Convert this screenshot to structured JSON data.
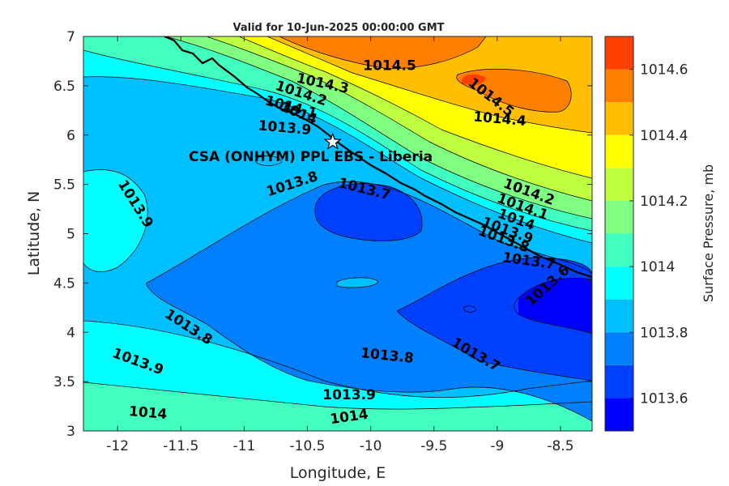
{
  "chart_data": {
    "type": "contour",
    "title": "Valid for 10-Jun-2025 00:00:00 GMT",
    "xlabel": "Longitude, E",
    "ylabel": "Latitude, N",
    "xlim": [
      -12.27,
      -8.25
    ],
    "ylim": [
      3,
      7
    ],
    "xticks": [
      -12,
      -11.5,
      -11,
      -10.5,
      -10,
      -9.5,
      -9,
      -8.5
    ],
    "yticks": [
      3,
      3.5,
      4,
      4.5,
      5,
      5.5,
      6,
      6.5,
      7
    ],
    "xtick_labels": [
      "-12",
      "-11.5",
      "-11",
      "-10.5",
      "-10",
      "-9.5",
      "-9",
      "-8.5"
    ],
    "ytick_labels": [
      "3",
      "3.5",
      "4",
      "4.5",
      "5",
      "5.5",
      "6",
      "6.5",
      "7"
    ],
    "colorbar": {
      "label": "Surface Pressure, mb",
      "range": [
        1013.5,
        1014.7
      ],
      "tick_values": [
        1013.6,
        1013.8,
        1014,
        1014.2,
        1014.4,
        1014.6
      ],
      "tick_labels": [
        "1013.6",
        "1013.8",
        "1014",
        "1014.2",
        "1014.4",
        "1014.6"
      ],
      "bins": [
        {
          "lo": 1013.5,
          "hi": 1013.6,
          "color": "#0000ff"
        },
        {
          "lo": 1013.6,
          "hi": 1013.7,
          "color": "#0040ff"
        },
        {
          "lo": 1013.7,
          "hi": 1013.8,
          "color": "#0080ff"
        },
        {
          "lo": 1013.8,
          "hi": 1013.9,
          "color": "#00bfff"
        },
        {
          "lo": 1013.9,
          "hi": 1014.0,
          "color": "#00ffff"
        },
        {
          "lo": 1014.0,
          "hi": 1014.1,
          "color": "#40ffbf"
        },
        {
          "lo": 1014.1,
          "hi": 1014.2,
          "color": "#80ff80"
        },
        {
          "lo": 1014.2,
          "hi": 1014.3,
          "color": "#bfff40"
        },
        {
          "lo": 1014.3,
          "hi": 1014.4,
          "color": "#ffff00"
        },
        {
          "lo": 1014.4,
          "hi": 1014.5,
          "color": "#ffbf00"
        },
        {
          "lo": 1014.5,
          "hi": 1014.6,
          "color": "#ff8000"
        },
        {
          "lo": 1014.6,
          "hi": 1014.7,
          "color": "#ff4000"
        },
        {
          "lo": 1014.7,
          "hi": 1014.8,
          "color": "#ff0000"
        }
      ]
    },
    "contour_labels": [
      {
        "text": "1014.5",
        "lon": -9.85,
        "lat": 6.7,
        "rot": 0
      },
      {
        "text": "1014.5",
        "lon": -9.05,
        "lat": 6.38,
        "rot": 38
      },
      {
        "text": "1014.4",
        "lon": -8.98,
        "lat": 6.16,
        "rot": 5
      },
      {
        "text": "1014.3",
        "lon": -10.38,
        "lat": 6.52,
        "rot": 12
      },
      {
        "text": "1014.2",
        "lon": -10.55,
        "lat": 6.42,
        "rot": 18
      },
      {
        "text": "1014.1",
        "lon": -10.63,
        "lat": 6.28,
        "rot": 15
      },
      {
        "text": "1014",
        "lon": -10.57,
        "lat": 6.22,
        "rot": 22
      },
      {
        "text": "1013.9",
        "lon": -10.68,
        "lat": 6.07,
        "rot": 5
      },
      {
        "text": "1013.8",
        "lon": -10.62,
        "lat": 5.5,
        "rot": -18
      },
      {
        "text": "1013.7",
        "lon": -10.05,
        "lat": 5.45,
        "rot": 14
      },
      {
        "text": "1014.2",
        "lon": -8.75,
        "lat": 5.42,
        "rot": 20
      },
      {
        "text": "1014.1",
        "lon": -8.8,
        "lat": 5.27,
        "rot": 20
      },
      {
        "text": "1014",
        "lon": -8.85,
        "lat": 5.14,
        "rot": 20
      },
      {
        "text": "1013.9",
        "lon": -8.92,
        "lat": 5.03,
        "rot": 20
      },
      {
        "text": "1013.8",
        "lon": -8.95,
        "lat": 4.94,
        "rot": 20
      },
      {
        "text": "1013.7",
        "lon": -8.75,
        "lat": 4.72,
        "rot": 8
      },
      {
        "text": "1013.6",
        "lon": -8.6,
        "lat": 4.47,
        "rot": -42
      },
      {
        "text": "1013.9",
        "lon": -11.86,
        "lat": 5.3,
        "rot": 58
      },
      {
        "text": "1013.8",
        "lon": -11.44,
        "lat": 4.05,
        "rot": 33
      },
      {
        "text": "1013.9",
        "lon": -11.84,
        "lat": 3.7,
        "rot": 20
      },
      {
        "text": "1014",
        "lon": -11.76,
        "lat": 3.18,
        "rot": 5
      },
      {
        "text": "1013.8",
        "lon": -9.87,
        "lat": 3.76,
        "rot": 6
      },
      {
        "text": "1013.9",
        "lon": -10.17,
        "lat": 3.36,
        "rot": 0
      },
      {
        "text": "1014",
        "lon": -10.17,
        "lat": 3.14,
        "rot": -8
      },
      {
        "text": "1013.7",
        "lon": -9.17,
        "lat": 3.77,
        "rot": 30
      }
    ],
    "site": {
      "name": "CSA (ONHYM) PPL EBS  - Liberia",
      "lon": -10.3,
      "lat": 5.93
    }
  }
}
